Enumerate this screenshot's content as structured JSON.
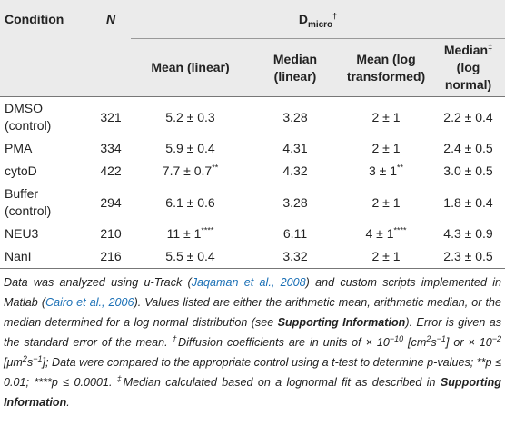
{
  "header": {
    "condition": "Condition",
    "n": "N",
    "dmicro": {
      "base": "D",
      "sub": "micro",
      "sup": "†"
    },
    "columns": [
      "Mean (linear)",
      "Median (linear)",
      "Mean (log transformed)"
    ],
    "last_column": {
      "text": "Median",
      "sup": "‡",
      "rest": " (log normal)"
    }
  },
  "rows": [
    {
      "condition": "DMSO (control)",
      "n": 321,
      "values": [
        "5.2 ± 0.3",
        "3.28",
        "2 ± 1",
        "2.2 ± 0.4"
      ]
    },
    {
      "condition": "PMA",
      "n": 334,
      "values": [
        "5.9 ± 0.4",
        "4.31",
        "2 ± 1",
        "2.4 ± 0.5"
      ]
    },
    {
      "condition": "cytoD",
      "n": 422,
      "values": [
        {
          "text": "7.7 ± 0.7",
          "sup": "**"
        },
        "4.32",
        {
          "text": "3 ± 1",
          "sup": "**"
        },
        "3.0 ± 0.5"
      ]
    },
    {
      "condition": "Buffer (control)",
      "n": 294,
      "values": [
        "6.1 ± 0.6",
        "3.28",
        "2 ± 1",
        "1.8 ± 0.4"
      ]
    },
    {
      "condition": "NEU3",
      "n": 210,
      "values": [
        {
          "text": "11 ± 1",
          "sup": "****"
        },
        "6.11",
        {
          "text": "4 ± 1",
          "sup": "****"
        },
        "4.3 ± 0.9"
      ]
    },
    {
      "condition": "NanI",
      "n": 216,
      "values": [
        "5.5 ± 0.4",
        "3.32",
        "2 ± 1",
        "2.3 ± 0.5"
      ]
    }
  ],
  "footnote": [
    "Data was analyzed using u-Track (",
    "Jaqaman et al., 2008",
    ") and custom scripts implemented in Matlab (",
    "Cairo et al., 2006",
    "). Values listed are either the arithmetic mean, arithmetic median, or the median determined for a log normal distribution (see ",
    "Supporting Information",
    "). Error is given as the standard error of the mean. ",
    "†",
    "Diffusion coefficients are in units of × 10",
    "−10",
    " [cm",
    "2",
    "s",
    "−1",
    "] or × 10",
    "−2",
    " [μm",
    "2",
    "s",
    "−1",
    "]; Data were compared to the appropriate control using a t-test to determine p-values; **p ≤ 0.01; ****p ≤ 0.0001. ",
    "‡",
    "Median calculated based on a lognormal fit as described in ",
    "Supporting Information",
    "."
  ]
}
